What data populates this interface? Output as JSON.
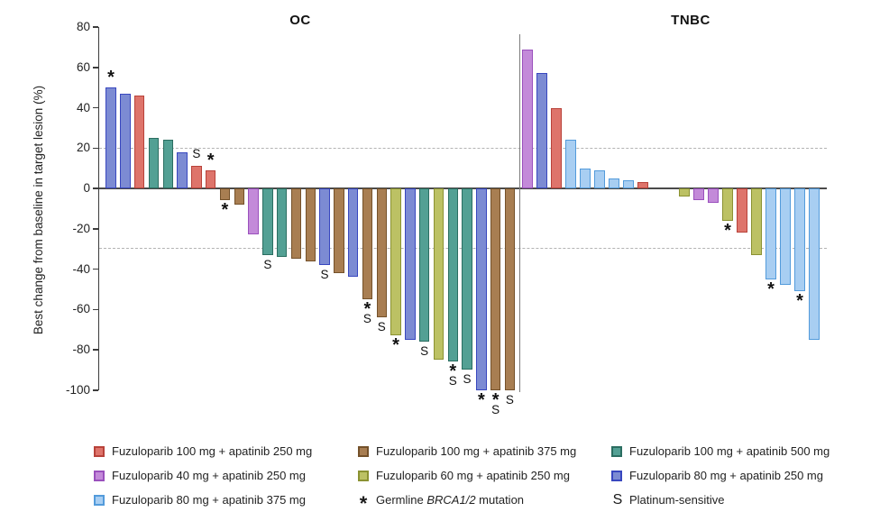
{
  "figure": {
    "ylabel": "Best change from baseline in target lesion (%)",
    "panel_titles": {
      "left": "OC",
      "right": "TNBC"
    }
  },
  "chart_data": {
    "type": "bar",
    "title": "Waterfall plot of best change from baseline in target lesion",
    "ylabel": "Best change from baseline in target lesion (%)",
    "ylim": [
      -100,
      80
    ],
    "yticks": [
      80,
      60,
      40,
      20,
      0,
      -20,
      -40,
      -60,
      -80,
      -100
    ],
    "reference_lines": [
      20,
      -30
    ],
    "grid": false,
    "legend_position": "bottom",
    "groups": {
      "fz100_ap250": {
        "label": "Fuzuloparib 100 mg + apatinib 250 mg",
        "fill": "#de746b",
        "border": "#b8423a"
      },
      "fz100_ap375": {
        "label": "Fuzuloparib 100 mg + apatinib 375 mg",
        "fill": "#a87e52",
        "border": "#74512a"
      },
      "fz100_ap500": {
        "label": "Fuzuloparib 100 mg + apatinib 500 mg",
        "fill": "#53a094",
        "border": "#2b6e61"
      },
      "fz40_ap250": {
        "label": "Fuzuloparib 40 mg + apatinib 250 mg",
        "fill": "#c38ad9",
        "border": "#9a50bd"
      },
      "fz60_ap250": {
        "label": "Fuzuloparib 60 mg + apatinib 250 mg",
        "fill": "#bcc164",
        "border": "#8b9232"
      },
      "fz80_ap250": {
        "label": "Fuzuloparib 80 mg + apatinib 250 mg",
        "fill": "#7c8bd3",
        "border": "#3847bf"
      },
      "fz80_ap375": {
        "label": "Fuzuloparib 80 mg + apatinib 375 mg",
        "fill": "#a8cef2",
        "border": "#539bdb"
      }
    },
    "marks": {
      "*": "Germline BRCA1/2 mutation",
      "S": "Platinum-sensitive"
    },
    "panels": [
      {
        "title": "OC",
        "bars": [
          {
            "value": 50,
            "group": "fz80_ap250",
            "mark": "*"
          },
          {
            "value": 47,
            "group": "fz80_ap250"
          },
          {
            "value": 46,
            "group": "fz100_ap250"
          },
          {
            "value": 25,
            "group": "fz100_ap500"
          },
          {
            "value": 24,
            "group": "fz100_ap500"
          },
          {
            "value": 18,
            "group": "fz80_ap250"
          },
          {
            "value": 11,
            "group": "fz100_ap250",
            "mark": "S"
          },
          {
            "value": 9,
            "group": "fz100_ap250",
            "mark": "*"
          },
          {
            "value": -6,
            "group": "fz100_ap375",
            "mark": "*"
          },
          {
            "value": -8,
            "group": "fz100_ap375"
          },
          {
            "value": -23,
            "group": "fz40_ap250"
          },
          {
            "value": -33,
            "group": "fz100_ap500",
            "mark": "S"
          },
          {
            "value": -34,
            "group": "fz100_ap500"
          },
          {
            "value": -35,
            "group": "fz100_ap375"
          },
          {
            "value": -36,
            "group": "fz100_ap375"
          },
          {
            "value": -38,
            "group": "fz80_ap250",
            "mark": "S"
          },
          {
            "value": -42,
            "group": "fz100_ap375"
          },
          {
            "value": -44,
            "group": "fz80_ap250"
          },
          {
            "value": -55,
            "group": "fz100_ap375",
            "mark": "*S"
          },
          {
            "value": -64,
            "group": "fz100_ap375",
            "mark": "S"
          },
          {
            "value": -73,
            "group": "fz60_ap250",
            "mark": "*"
          },
          {
            "value": -75,
            "group": "fz80_ap250"
          },
          {
            "value": -76,
            "group": "fz100_ap500",
            "mark": "S"
          },
          {
            "value": -85,
            "group": "fz60_ap250"
          },
          {
            "value": -86,
            "group": "fz100_ap500",
            "mark": "*S"
          },
          {
            "value": -90,
            "group": "fz100_ap500",
            "mark": "S"
          },
          {
            "value": -100,
            "group": "fz80_ap250",
            "mark": "*"
          },
          {
            "value": -100,
            "group": "fz100_ap375",
            "mark": "*S"
          },
          {
            "value": -100,
            "group": "fz100_ap375",
            "mark": "S"
          }
        ]
      },
      {
        "title": "TNBC",
        "bars": [
          {
            "value": 69,
            "group": "fz40_ap250"
          },
          {
            "value": 57,
            "group": "fz80_ap250"
          },
          {
            "value": 40,
            "group": "fz100_ap250"
          },
          {
            "value": 24,
            "group": "fz80_ap375"
          },
          {
            "value": 10,
            "group": "fz80_ap375"
          },
          {
            "value": 9,
            "group": "fz80_ap375"
          },
          {
            "value": 5,
            "group": "fz80_ap375"
          },
          {
            "value": 4,
            "group": "fz80_ap375"
          },
          {
            "value": 3,
            "group": "fz100_ap250"
          },
          {
            "value": -4,
            "group": "fz60_ap250"
          },
          {
            "value": -6,
            "group": "fz40_ap250"
          },
          {
            "value": -7,
            "group": "fz40_ap250"
          },
          {
            "value": -16,
            "group": "fz60_ap250",
            "mark": "*"
          },
          {
            "value": -22,
            "group": "fz100_ap250"
          },
          {
            "value": -33,
            "group": "fz60_ap250"
          },
          {
            "value": -45,
            "group": "fz80_ap375",
            "mark": "*"
          },
          {
            "value": -48,
            "group": "fz80_ap375"
          },
          {
            "value": -51,
            "group": "fz80_ap375",
            "mark": "*"
          },
          {
            "value": -75,
            "group": "fz80_ap375"
          }
        ]
      }
    ]
  },
  "legend": {
    "columns": [
      {
        "items": [
          {
            "icon": "swatch",
            "group": "fz100_ap250"
          },
          {
            "icon": "swatch",
            "group": "fz40_ap250"
          },
          {
            "icon": "swatch",
            "group": "fz80_ap375"
          }
        ]
      },
      {
        "items": [
          {
            "icon": "swatch",
            "group": "fz100_ap375"
          },
          {
            "icon": "swatch",
            "group": "fz60_ap250"
          },
          {
            "icon": "star",
            "label_prefix": "Germline ",
            "label_italic": "BRCA1/2",
            "label_suffix": " mutation"
          }
        ]
      },
      {
        "items": [
          {
            "icon": "swatch",
            "group": "fz100_ap500"
          },
          {
            "icon": "swatch",
            "group": "fz80_ap250"
          },
          {
            "icon": "s",
            "label": "Platinum-sensitive"
          }
        ]
      }
    ]
  }
}
